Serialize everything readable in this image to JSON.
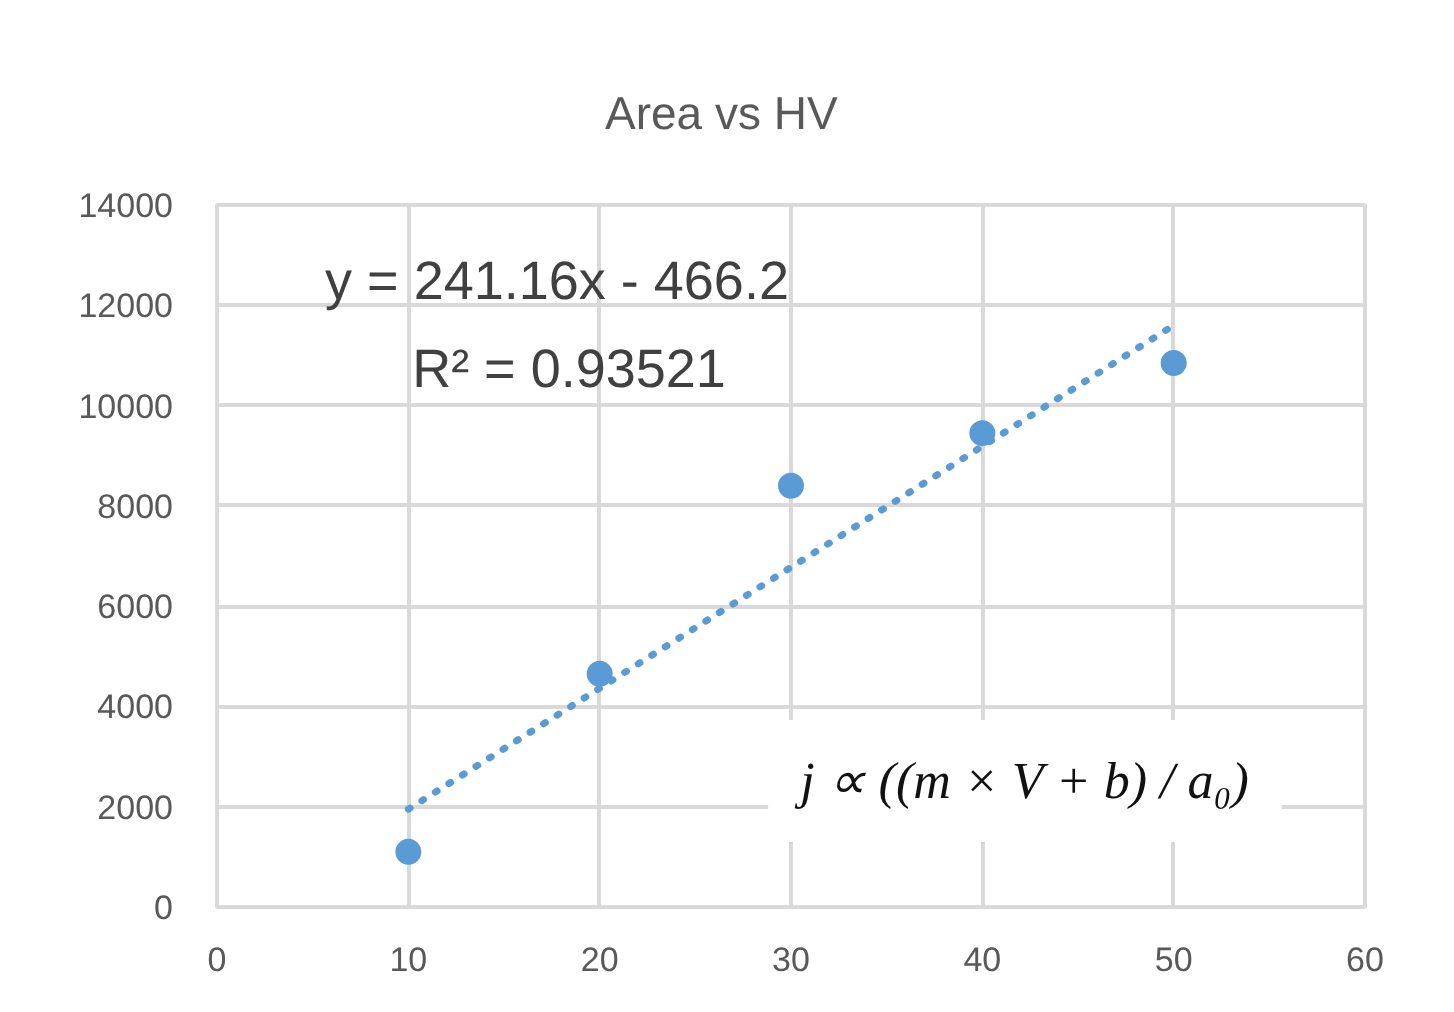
{
  "chart_data": {
    "type": "scatter",
    "title": "Area vs HV",
    "x": [
      10,
      20,
      30,
      40,
      50
    ],
    "series": [
      {
        "color": "#5b9bd5",
        "marker": "circle",
        "values": [
          1100,
          4650,
          8400,
          9450,
          10850
        ]
      },
      {
        "type": "line",
        "x": [
          10,
          50
        ],
        "values": [
          1950,
          11600
        ],
        "color": "#5b9bd5",
        "line_style": "dotted",
        "marker": "none"
      }
    ],
    "xlim": [
      0,
      60
    ],
    "xticks": [
      0,
      10,
      20,
      30,
      40,
      50,
      60
    ],
    "ylim": [
      0,
      14000
    ],
    "yticks": [
      0,
      2000,
      4000,
      6000,
      8000,
      10000,
      12000,
      14000
    ],
    "grid": true,
    "annotations": [
      "y = 241.16x - 466.2",
      "R² = 0.93521",
      "j ∝ ((m × V + b) / a₀)"
    ]
  }
}
